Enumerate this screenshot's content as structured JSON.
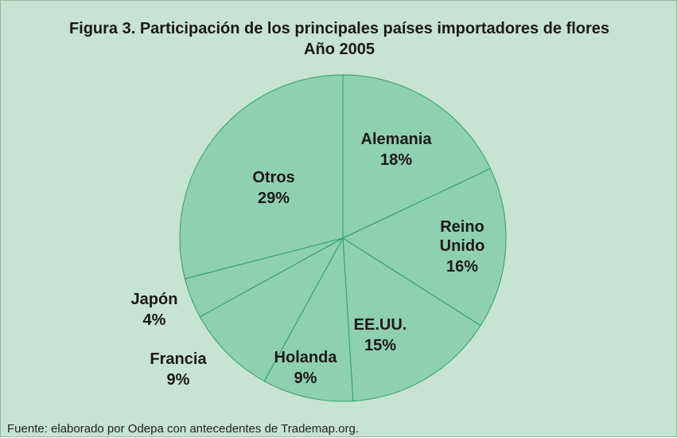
{
  "chart_data": {
    "type": "pie",
    "title": "Figura 3. Participación de los principales países importadores de flores",
    "subtitle": "Año 2005",
    "categories": [
      "Alemania",
      "Reino Unido",
      "EE.UU.",
      "Holanda",
      "Francia",
      "Japón",
      "Otros"
    ],
    "values": [
      18,
      16,
      15,
      9,
      9,
      4,
      29
    ],
    "value_labels": [
      "18%",
      "16%",
      "15%",
      "9%",
      "9%",
      "4%",
      "29%"
    ],
    "color": "#8fcfb2",
    "source": "Fuente: elaborado por Odepa con antecedentes de Trademap.org."
  }
}
